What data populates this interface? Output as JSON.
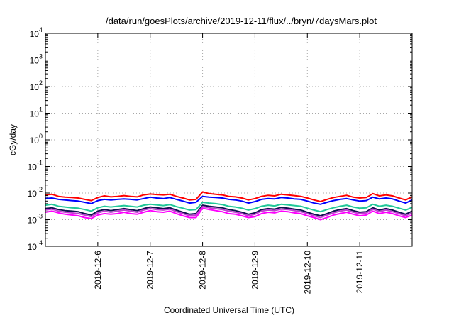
{
  "chart_data": {
    "type": "line",
    "title": "/data/run/goesPlots/archive/2019-12-11/flux/../bryn/7daysMars.plot",
    "xlabel": "Coordinated Universal Time (UTC)",
    "ylabel": "cGy/day",
    "y_scale": "log",
    "ylim": [
      0.0001,
      10000
    ],
    "y_ticks": [
      {
        "value": 0.0001,
        "mantissa": "10",
        "exp": "-4"
      },
      {
        "value": 0.001,
        "mantissa": "10",
        "exp": "-3"
      },
      {
        "value": 0.01,
        "mantissa": "10",
        "exp": "-2"
      },
      {
        "value": 0.1,
        "mantissa": "10",
        "exp": "-1"
      },
      {
        "value": 1,
        "mantissa": "10",
        "exp": "0"
      },
      {
        "value": 10,
        "mantissa": "10",
        "exp": "1"
      },
      {
        "value": 100,
        "mantissa": "10",
        "exp": "2"
      },
      {
        "value": 1000,
        "mantissa": "10",
        "exp": "3"
      },
      {
        "value": 10000,
        "mantissa": "10",
        "exp": "4"
      }
    ],
    "xlim": [
      "2019-12-05 00:00",
      "2019-12-12 00:00"
    ],
    "x_ticks": [
      {
        "value": "2019-12-06",
        "label": "2019-12-6"
      },
      {
        "value": "2019-12-07",
        "label": "2019-12-7"
      },
      {
        "value": "2019-12-08",
        "label": "2019-12-8"
      },
      {
        "value": "2019-12-09",
        "label": "2019-12-9"
      },
      {
        "value": "2019-12-10",
        "label": "2019-12-10"
      },
      {
        "value": "2019-12-11",
        "label": "2019-12-11"
      }
    ],
    "grid": true,
    "x": [
      "2019-12-05 00:00",
      "2019-12-05 03:00",
      "2019-12-05 06:00",
      "2019-12-05 09:00",
      "2019-12-05 12:00",
      "2019-12-05 15:00",
      "2019-12-05 18:00",
      "2019-12-05 21:00",
      "2019-12-06 00:00",
      "2019-12-06 03:00",
      "2019-12-06 06:00",
      "2019-12-06 09:00",
      "2019-12-06 12:00",
      "2019-12-06 15:00",
      "2019-12-06 18:00",
      "2019-12-06 21:00",
      "2019-12-07 00:00",
      "2019-12-07 03:00",
      "2019-12-07 06:00",
      "2019-12-07 09:00",
      "2019-12-07 12:00",
      "2019-12-07 15:00",
      "2019-12-07 18:00",
      "2019-12-07 21:00",
      "2019-12-08 00:00",
      "2019-12-08 03:00",
      "2019-12-08 06:00",
      "2019-12-08 09:00",
      "2019-12-08 12:00",
      "2019-12-08 15:00",
      "2019-12-08 18:00",
      "2019-12-08 21:00",
      "2019-12-09 00:00",
      "2019-12-09 03:00",
      "2019-12-09 06:00",
      "2019-12-09 09:00",
      "2019-12-09 12:00",
      "2019-12-09 15:00",
      "2019-12-09 18:00",
      "2019-12-09 21:00",
      "2019-12-10 00:00",
      "2019-12-10 03:00",
      "2019-12-10 06:00",
      "2019-12-10 09:00",
      "2019-12-10 12:00",
      "2019-12-10 15:00",
      "2019-12-10 18:00",
      "2019-12-10 21:00",
      "2019-12-11 00:00",
      "2019-12-11 03:00",
      "2019-12-11 06:00",
      "2019-12-11 09:00",
      "2019-12-11 12:00",
      "2019-12-11 15:00",
      "2019-12-11 18:00",
      "2019-12-11 21:00",
      "2019-12-12 00:00"
    ],
    "series": [
      {
        "color": "#ff0000",
        "values": [
          0.0085,
          0.009,
          0.0075,
          0.007,
          0.0068,
          0.0065,
          0.0058,
          0.0052,
          0.0068,
          0.0078,
          0.0072,
          0.0075,
          0.008,
          0.0075,
          0.0072,
          0.0085,
          0.0092,
          0.0088,
          0.0085,
          0.009,
          0.0075,
          0.0065,
          0.0055,
          0.0058,
          0.011,
          0.0095,
          0.009,
          0.0085,
          0.0075,
          0.0072,
          0.0065,
          0.0055,
          0.0062,
          0.0075,
          0.0082,
          0.0078,
          0.009,
          0.0085,
          0.008,
          0.0075,
          0.0065,
          0.0055,
          0.0048,
          0.0058,
          0.0068,
          0.0075,
          0.0082,
          0.007,
          0.0065,
          0.0068,
          0.0095,
          0.0078,
          0.0085,
          0.0078,
          0.0065,
          0.0055,
          0.0072
        ]
      },
      {
        "color": "#0000ff",
        "values": [
          0.0062,
          0.0065,
          0.0058,
          0.0055,
          0.0052,
          0.005,
          0.0045,
          0.004,
          0.0052,
          0.0058,
          0.0055,
          0.0058,
          0.006,
          0.0058,
          0.0055,
          0.0062,
          0.007,
          0.0065,
          0.0062,
          0.0068,
          0.0058,
          0.005,
          0.0042,
          0.0045,
          0.0075,
          0.007,
          0.0068,
          0.0065,
          0.0058,
          0.0055,
          0.005,
          0.0042,
          0.0048,
          0.0058,
          0.0062,
          0.006,
          0.0068,
          0.0065,
          0.006,
          0.0058,
          0.005,
          0.0042,
          0.0038,
          0.0045,
          0.0052,
          0.0058,
          0.0062,
          0.0055,
          0.005,
          0.0052,
          0.007,
          0.006,
          0.0065,
          0.006,
          0.005,
          0.0042,
          0.0055
        ]
      },
      {
        "color": "#20c898",
        "values": [
          0.0035,
          0.0038,
          0.0032,
          0.003,
          0.0028,
          0.0027,
          0.0024,
          0.0021,
          0.0028,
          0.0032,
          0.003,
          0.0032,
          0.0034,
          0.0032,
          0.003,
          0.0035,
          0.0038,
          0.0036,
          0.0034,
          0.0037,
          0.0031,
          0.0027,
          0.0023,
          0.0024,
          0.0045,
          0.0042,
          0.004,
          0.0037,
          0.0032,
          0.003,
          0.0027,
          0.0023,
          0.0026,
          0.0032,
          0.0035,
          0.0033,
          0.0038,
          0.0036,
          0.0034,
          0.0032,
          0.0027,
          0.0023,
          0.002,
          0.0024,
          0.0028,
          0.0032,
          0.0035,
          0.003,
          0.0027,
          0.0028,
          0.0038,
          0.0032,
          0.0035,
          0.0032,
          0.0027,
          0.0023,
          0.0029
        ]
      },
      {
        "color": "#101050",
        "values": [
          0.0026,
          0.0028,
          0.0024,
          0.0022,
          0.0021,
          0.002,
          0.0017,
          0.0015,
          0.0021,
          0.0024,
          0.0022,
          0.0024,
          0.0026,
          0.0024,
          0.0022,
          0.0026,
          0.003,
          0.0028,
          0.0026,
          0.0028,
          0.0023,
          0.0019,
          0.0016,
          0.0017,
          0.0035,
          0.0032,
          0.003,
          0.0028,
          0.0024,
          0.0022,
          0.0019,
          0.0016,
          0.0018,
          0.0024,
          0.0026,
          0.0025,
          0.0029,
          0.0027,
          0.0025,
          0.0023,
          0.0019,
          0.0016,
          0.0014,
          0.0017,
          0.0021,
          0.0024,
          0.0026,
          0.0022,
          0.0019,
          0.002,
          0.0028,
          0.0023,
          0.0026,
          0.0023,
          0.0019,
          0.0016,
          0.0021
        ]
      },
      {
        "color": "#c040d0",
        "values": [
          0.0023,
          0.0025,
          0.0021,
          0.0019,
          0.0018,
          0.0017,
          0.0015,
          0.0013,
          0.0018,
          0.0021,
          0.0019,
          0.0021,
          0.0023,
          0.0021,
          0.0019,
          0.0023,
          0.0026,
          0.0024,
          0.0023,
          0.0025,
          0.002,
          0.0017,
          0.0014,
          0.0015,
          0.0031,
          0.0028,
          0.0026,
          0.0024,
          0.0021,
          0.0019,
          0.0017,
          0.0014,
          0.0016,
          0.0021,
          0.0023,
          0.0022,
          0.0025,
          0.0024,
          0.0022,
          0.002,
          0.0017,
          0.0014,
          0.0012,
          0.0015,
          0.0018,
          0.0021,
          0.0023,
          0.0019,
          0.0017,
          0.0018,
          0.0025,
          0.002,
          0.0023,
          0.002,
          0.0017,
          0.0014,
          0.0018
        ]
      },
      {
        "color": "#ff00ff",
        "values": [
          0.0019,
          0.0021,
          0.0018,
          0.0016,
          0.0015,
          0.0014,
          0.0012,
          0.0011,
          0.0015,
          0.0017,
          0.0016,
          0.0017,
          0.0019,
          0.0017,
          0.0016,
          0.0019,
          0.0022,
          0.002,
          0.0019,
          0.0021,
          0.0017,
          0.0014,
          0.0012,
          0.0012,
          0.0027,
          0.0024,
          0.0022,
          0.002,
          0.0017,
          0.0016,
          0.0014,
          0.0012,
          0.0013,
          0.0017,
          0.0019,
          0.0018,
          0.0021,
          0.002,
          0.0018,
          0.0017,
          0.0014,
          0.0012,
          0.001,
          0.0012,
          0.0015,
          0.0017,
          0.0019,
          0.0016,
          0.0014,
          0.0015,
          0.0021,
          0.0017,
          0.0019,
          0.0017,
          0.0014,
          0.0012,
          0.0015
        ]
      }
    ]
  }
}
